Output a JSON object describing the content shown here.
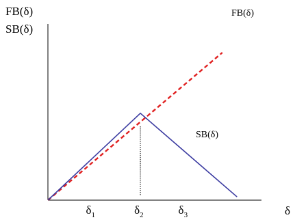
{
  "chart_data": {
    "type": "line",
    "ylabel_line1": "FB(δ)",
    "ylabel_line2": "SB(δ)",
    "xlabel": "δ",
    "xlim": [
      0,
      1
    ],
    "ylim": [
      0,
      1
    ],
    "grid": false,
    "legend": "none",
    "x_ticks": [
      {
        "base": "δ",
        "sub": "1",
        "x": 0.21
      },
      {
        "base": "δ",
        "sub": "2",
        "x": 0.44
      },
      {
        "base": "δ",
        "sub": "3",
        "x": 0.65
      }
    ],
    "series": [
      {
        "name": "FB(δ)",
        "color": "#e02020",
        "style": "dashed",
        "points": [
          [
            0,
            0
          ],
          [
            0.83,
            0.9
          ]
        ]
      },
      {
        "name": "SB(δ)",
        "color": "#3a3aa0",
        "style": "solid",
        "points": [
          [
            0,
            0
          ],
          [
            0.44,
            0.53
          ],
          [
            0.9,
            0.02
          ]
        ]
      }
    ],
    "annotations": [
      {
        "type": "vline",
        "x": 0.44,
        "y_from": 0.03,
        "y_to": 0.45,
        "color": "#000000",
        "style": "dotted"
      }
    ]
  }
}
